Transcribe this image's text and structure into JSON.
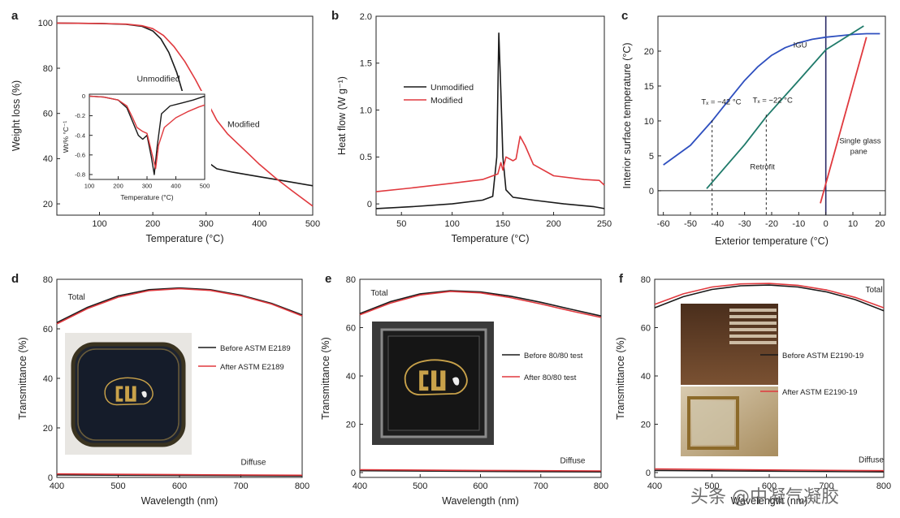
{
  "watermark": "头条 @中凝气凝胶",
  "colors": {
    "black": "#1a1a1a",
    "red": "#e0393e",
    "blue": "#2e4fbf",
    "green": "#1f7a6a",
    "navy": "#2a2a66",
    "frame": "#222222"
  },
  "chart_data": [
    {
      "panel": "a",
      "type": "line",
      "xlabel": "Temperature (°C)",
      "ylabel": "Weight loss (%)",
      "xlim": [
        20,
        500
      ],
      "ylim": [
        15,
        103
      ],
      "xticks": [
        100,
        200,
        300,
        400,
        500
      ],
      "yticks": [
        20,
        40,
        60,
        80,
        100
      ],
      "series": [
        {
          "name": "Unmodified",
          "color": "#1a1a1a",
          "x": [
            20,
            100,
            150,
            180,
            200,
            215,
            230,
            245,
            260,
            275,
            290,
            300,
            320,
            350,
            400,
            450,
            500
          ],
          "y": [
            100,
            99.8,
            99.4,
            98.5,
            96.5,
            93,
            87,
            78,
            66,
            52,
            43,
            39,
            35.5,
            34,
            32,
            30,
            28
          ]
        },
        {
          "name": "Modified",
          "color": "#e0393e",
          "x": [
            20,
            100,
            150,
            180,
            200,
            220,
            240,
            260,
            280,
            300,
            320,
            340,
            360,
            380,
            400,
            430,
            460,
            500
          ],
          "y": [
            100,
            99.8,
            99.5,
            98.8,
            97.5,
            94.5,
            89.5,
            83,
            75,
            66,
            57,
            51,
            46.5,
            42,
            37.5,
            31.5,
            26,
            19
          ]
        }
      ],
      "annotations": [
        {
          "text": "Unmodified",
          "x": 170,
          "y": 74
        },
        {
          "text": "Modified",
          "x": 340,
          "y": 54
        }
      ],
      "inset": {
        "xlabel": "Temperature (°C)",
        "ylabel": "Wt/% °C⁻¹",
        "xlim": [
          100,
          500
        ],
        "ylim": [
          -0.85,
          0.02
        ],
        "xticks": [
          100,
          200,
          300,
          400,
          500
        ],
        "yticks": [
          0,
          -0.2,
          -0.4,
          -0.6,
          -0.8
        ],
        "ytick_labels": [
          "0",
          "-0.2",
          "-0.4",
          "-0.6",
          "-0.8"
        ],
        "series": [
          {
            "name": "Unmodified",
            "color": "#1a1a1a",
            "x": [
              100,
              150,
              200,
              230,
              250,
              270,
              285,
              300,
              315,
              325,
              335,
              350,
              380,
              420,
              460,
              500
            ],
            "y": [
              0,
              -0.01,
              -0.04,
              -0.12,
              -0.26,
              -0.4,
              -0.44,
              -0.4,
              -0.62,
              -0.8,
              -0.52,
              -0.18,
              -0.1,
              -0.07,
              -0.04,
              0
            ]
          },
          {
            "name": "Modified",
            "color": "#e0393e",
            "x": [
              100,
              150,
              200,
              230,
              250,
              265,
              285,
              300,
              315,
              330,
              340,
              360,
              400,
              440,
              480,
              500
            ],
            "y": [
              0,
              -0.01,
              -0.04,
              -0.1,
              -0.22,
              -0.32,
              -0.36,
              -0.38,
              -0.56,
              -0.74,
              -0.5,
              -0.32,
              -0.22,
              -0.16,
              -0.11,
              -0.09
            ]
          }
        ]
      }
    },
    {
      "panel": "b",
      "type": "line",
      "xlabel": "Temperature (°C)",
      "ylabel": "Heat flow (W g⁻¹)",
      "xlim": [
        25,
        250
      ],
      "ylim": [
        -0.12,
        2.0
      ],
      "xticks": [
        50,
        100,
        150,
        200,
        250
      ],
      "yticks": [
        0,
        0.5,
        1.0,
        1.5,
        2.0
      ],
      "ytick_labels": [
        "0",
        "0.5",
        "1.0",
        "1.5",
        "2.0"
      ],
      "legend": [
        {
          "label": "Unmodified",
          "color": "#1a1a1a"
        },
        {
          "label": "Modified",
          "color": "#e0393e"
        }
      ],
      "series": [
        {
          "name": "Unmodified",
          "color": "#1a1a1a",
          "x": [
            25,
            60,
            100,
            130,
            140,
            144,
            146,
            148,
            150,
            153,
            160,
            180,
            210,
            240,
            250
          ],
          "y": [
            -0.05,
            -0.03,
            0.0,
            0.04,
            0.08,
            0.5,
            1.82,
            1.2,
            0.5,
            0.15,
            0.07,
            0.04,
            0.0,
            -0.03,
            -0.05
          ]
        },
        {
          "name": "Modified",
          "color": "#e0393e",
          "x": [
            25,
            60,
            100,
            130,
            145,
            148,
            150,
            153,
            160,
            163,
            167,
            172,
            180,
            200,
            230,
            245,
            250
          ],
          "y": [
            0.13,
            0.17,
            0.22,
            0.26,
            0.32,
            0.44,
            0.36,
            0.5,
            0.46,
            0.48,
            0.72,
            0.62,
            0.42,
            0.3,
            0.26,
            0.25,
            0.2
          ]
        }
      ]
    },
    {
      "panel": "c",
      "type": "line",
      "xlabel": "Exterior temperature (°C)",
      "ylabel": "Interior surface temperature (°C)",
      "xlim": [
        -62,
        22
      ],
      "ylim": [
        -3.5,
        25
      ],
      "xticks": [
        -60,
        -50,
        -40,
        -30,
        -20,
        -10,
        0,
        10,
        20
      ],
      "yticks": [
        0,
        5,
        10,
        15,
        20
      ],
      "series": [
        {
          "name": "IGU",
          "color": "#2e4fbf",
          "x": [
            -60,
            -50,
            -42,
            -35,
            -30,
            -25,
            -20,
            -15,
            -10,
            -5,
            0,
            5,
            10,
            15,
            20
          ],
          "y": [
            3.7,
            6.5,
            10,
            13.4,
            15.8,
            17.8,
            19.4,
            20.5,
            21.2,
            21.7,
            22.0,
            22.2,
            22.4,
            22.5,
            22.5
          ]
        },
        {
          "name": "Retrofit",
          "color": "#1f7a6a",
          "x": [
            -44,
            -30,
            -22,
            -10,
            0,
            14
          ],
          "y": [
            0.3,
            6.6,
            10.6,
            15.8,
            20.2,
            23.6
          ]
        },
        {
          "name": "Single glass pane",
          "color": "#e0393e",
          "x": [
            -2,
            15
          ],
          "y": [
            -1.8,
            22
          ]
        }
      ],
      "vline": 0,
      "dashed_markers": [
        {
          "x": -42,
          "y": 10.1
        },
        {
          "x": -22,
          "y": 10.9
        }
      ],
      "annotations": [
        {
          "text": "IGU",
          "x": -12,
          "y": 20.5
        },
        {
          "text": "Tₓ = −42 °C",
          "x": -46,
          "y": 12.4
        },
        {
          "text": "Tₓ = −22 °C",
          "x": -27,
          "y": 12.6
        },
        {
          "text": "Retrofit",
          "x": -28,
          "y": 3.1
        },
        {
          "text": "Single glass",
          "x": 5,
          "y": 6.8
        },
        {
          "text": "pane",
          "x": 9,
          "y": 5.3
        }
      ]
    },
    {
      "panel": "d",
      "type": "line",
      "xlabel": "Wavelength (nm)",
      "ylabel": "Transmittance (%)",
      "xlim": [
        400,
        800
      ],
      "ylim": [
        0,
        80
      ],
      "xticks": [
        400,
        500,
        600,
        700,
        800
      ],
      "yticks": [
        0,
        20,
        40,
        60,
        80
      ],
      "legend": [
        {
          "label": "Before ASTM E2189",
          "color": "#1a1a1a"
        },
        {
          "label": "After ASTM E2189",
          "color": "#e0393e"
        }
      ],
      "series": [
        {
          "name": "Before ASTM E2189",
          "color": "#1a1a1a",
          "x": [
            400,
            450,
            500,
            550,
            600,
            650,
            700,
            750,
            800
          ],
          "y": [
            62.5,
            68.7,
            73.3,
            75.8,
            76.5,
            75.8,
            73.6,
            70.3,
            65.6
          ]
        },
        {
          "name": "After ASTM E2189",
          "color": "#e0393e",
          "x": [
            400,
            450,
            500,
            550,
            600,
            650,
            700,
            750,
            800
          ],
          "y": [
            62.0,
            68.2,
            72.8,
            75.4,
            76.2,
            75.5,
            73.3,
            70.0,
            65.2
          ]
        },
        {
          "name": "Diffuse (before)",
          "color": "#1a1a1a",
          "x": [
            400,
            600,
            800
          ],
          "y": [
            1.0,
            0.8,
            0.6
          ]
        },
        {
          "name": "Diffuse (after)",
          "color": "#e0393e",
          "x": [
            400,
            600,
            800
          ],
          "y": [
            1.4,
            1.1,
            0.9
          ]
        }
      ],
      "annotations": [
        {
          "text": "Total",
          "x": 418,
          "y": 71.8
        },
        {
          "text": "Diffuse",
          "x": 700,
          "y": 5.1
        }
      ]
    },
    {
      "panel": "e",
      "type": "line",
      "xlabel": "Wavelength (nm)",
      "ylabel": "Transmittance (%)",
      "xlim": [
        400,
        800
      ],
      "ylim": [
        -2,
        80
      ],
      "xticks": [
        400,
        500,
        600,
        700,
        800
      ],
      "yticks": [
        0,
        20,
        40,
        60,
        80
      ],
      "legend": [
        {
          "label": "Before 80/80 test",
          "color": "#1a1a1a"
        },
        {
          "label": "After 80/80 test",
          "color": "#e0393e"
        }
      ],
      "series": [
        {
          "name": "Before 80/80 test",
          "color": "#1a1a1a",
          "x": [
            400,
            450,
            500,
            550,
            600,
            650,
            700,
            750,
            800
          ],
          "y": [
            65.8,
            70.7,
            74.0,
            75.3,
            74.8,
            73.0,
            70.5,
            67.6,
            64.8
          ]
        },
        {
          "name": "After 80/80 test",
          "color": "#e0393e",
          "x": [
            400,
            450,
            500,
            550,
            600,
            650,
            700,
            750,
            800
          ],
          "y": [
            65.3,
            70.1,
            73.5,
            75.0,
            74.4,
            72.4,
            69.8,
            66.9,
            64.2
          ]
        },
        {
          "name": "Diffuse (before)",
          "color": "#1a1a1a",
          "x": [
            400,
            600,
            800
          ],
          "y": [
            0.8,
            0.5,
            0.3
          ]
        },
        {
          "name": "Diffuse (after)",
          "color": "#e0393e",
          "x": [
            400,
            600,
            800
          ],
          "y": [
            1.2,
            0.9,
            0.7
          ]
        }
      ],
      "annotations": [
        {
          "text": "Total",
          "x": 418,
          "y": 73.2
        },
        {
          "text": "Diffuse",
          "x": 732,
          "y": 3.8
        }
      ]
    },
    {
      "panel": "f",
      "type": "line",
      "xlabel": "Wavelength (nm)",
      "ylabel": "Transmittance (%)",
      "xlim": [
        400,
        800
      ],
      "ylim": [
        -2,
        80
      ],
      "xticks": [
        400,
        500,
        600,
        700,
        800
      ],
      "yticks": [
        0,
        20,
        40,
        60,
        80
      ],
      "legend": [
        {
          "label": "Before ASTM E2190-19",
          "color": "#1a1a1a"
        },
        {
          "label": "After ASTM E2190-19",
          "color": "#e0393e"
        }
      ],
      "series": [
        {
          "name": "Before ASTM E2190-19",
          "color": "#1a1a1a",
          "x": [
            400,
            450,
            500,
            550,
            600,
            650,
            700,
            750,
            800
          ],
          "y": [
            68.2,
            72.8,
            75.8,
            77.3,
            77.6,
            76.8,
            74.8,
            71.6,
            67.0
          ]
        },
        {
          "name": "After ASTM E2190-19",
          "color": "#e0393e",
          "x": [
            400,
            450,
            500,
            550,
            600,
            650,
            700,
            750,
            800
          ],
          "y": [
            69.6,
            74.0,
            76.8,
            78.1,
            78.3,
            77.5,
            75.6,
            72.5,
            68.2
          ]
        },
        {
          "name": "Diffuse (before)",
          "color": "#1a1a1a",
          "x": [
            400,
            600,
            800
          ],
          "y": [
            0.9,
            0.6,
            0.3
          ]
        },
        {
          "name": "Diffuse (after)",
          "color": "#e0393e",
          "x": [
            400,
            600,
            800
          ],
          "y": [
            1.5,
            1.1,
            0.8
          ]
        }
      ],
      "annotations": [
        {
          "text": "Total",
          "x": 768,
          "y": 74.6
        },
        {
          "text": "Diffuse",
          "x": 756,
          "y": 4.2
        }
      ]
    }
  ]
}
